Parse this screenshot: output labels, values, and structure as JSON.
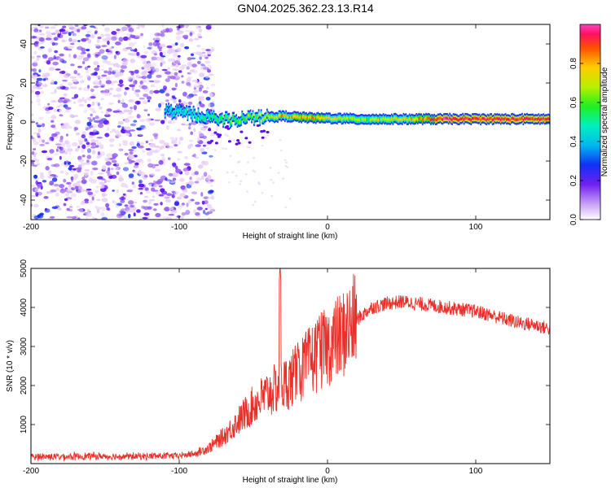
{
  "title": "GN04.2025.362.23.13.R14",
  "colors": {
    "snr_line": "#e8302a",
    "axis": "#000000",
    "colormap": [
      "#e6ccf5",
      "#9a5cf0",
      "#5a10f0",
      "#0a2cf5",
      "#00b4f0",
      "#00f0c8",
      "#20f020",
      "#b4f000",
      "#ffcc00",
      "#ff5a00",
      "#ff1060",
      "#ff40c0"
    ]
  },
  "chart_data": [
    {
      "type": "heatmap",
      "title": "GN04.2025.362.23.13.R14",
      "xlabel": "Height of straight line (km)",
      "ylabel": "Frequency (Hz)",
      "xlim": [
        -200,
        150
      ],
      "ylim": [
        -50,
        50
      ],
      "xticks": [
        -200,
        -100,
        0,
        100
      ],
      "yticks": [
        40,
        20,
        0,
        -20,
        -40
      ],
      "colorbar": {
        "label": "Normalized spectral amplitude",
        "range": [
          0.0,
          1.0
        ],
        "ticks": [
          "0.0",
          "0.2",
          "0.4",
          "0.6",
          "0.8"
        ]
      },
      "description_data": {
        "noise_region_x": [
          -200,
          -85
        ],
        "signal_ridge": {
          "x": [
            -110,
            -90,
            -70,
            -50,
            -30,
            -10,
            0,
            20,
            50,
            80,
            110,
            150
          ],
          "freq": [
            6,
            4,
            1,
            2,
            3,
            2,
            2,
            1.5,
            1.5,
            1.5,
            1.5,
            1.5
          ],
          "amplitude": [
            0.35,
            0.45,
            0.55,
            0.6,
            0.7,
            0.75,
            0.7,
            0.6,
            0.65,
            0.9,
            0.85,
            0.85
          ]
        }
      }
    },
    {
      "type": "line",
      "title": "",
      "xlabel": "Height of straight line (km)",
      "ylabel": "SNR (10 * v/v)",
      "xlim": [
        -200,
        150
      ],
      "ylim": [
        0,
        5000
      ],
      "xticks": [
        -200,
        -100,
        0,
        100
      ],
      "yticks": [
        5000,
        4000,
        3000,
        2000,
        1000
      ],
      "series": [
        {
          "name": "SNR",
          "x": [
            -200,
            -180,
            -160,
            -140,
            -120,
            -100,
            -90,
            -80,
            -70,
            -60,
            -50,
            -40,
            -30,
            -20,
            -10,
            0,
            10,
            20,
            30,
            40,
            50,
            60,
            70,
            80,
            90,
            100,
            110,
            120,
            130,
            140,
            150
          ],
          "y": [
            180,
            180,
            190,
            185,
            190,
            200,
            250,
            400,
            700,
            1100,
            1500,
            1800,
            2000,
            2300,
            2700,
            3000,
            3300,
            3700,
            4000,
            4100,
            4150,
            4100,
            4050,
            4000,
            3950,
            3900,
            3800,
            3700,
            3600,
            3550,
            3450
          ],
          "spikes": [
            {
              "x": -32,
              "y": 5100
            },
            {
              "x": -6,
              "y": 3600
            },
            {
              "x": -20,
              "y": 3100
            }
          ]
        }
      ]
    }
  ]
}
